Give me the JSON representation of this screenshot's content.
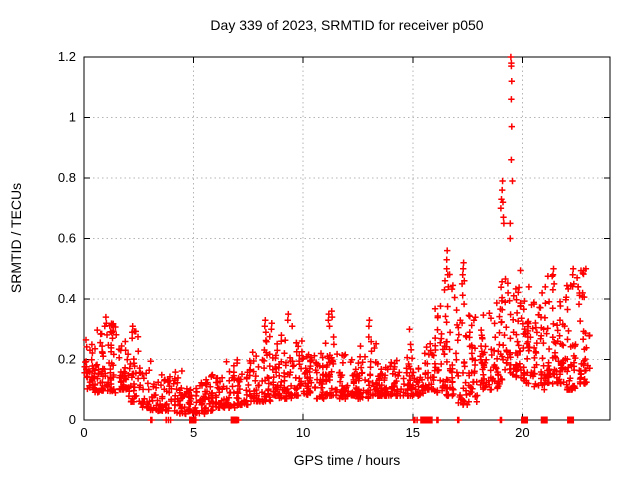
{
  "chart_data": {
    "type": "scatter",
    "title": "Day 339 of 2023, SRMTID for receiver p050",
    "xlabel": "GPS time / hours",
    "ylabel": "SRMTID / TECUs",
    "xlim": [
      0,
      24
    ],
    "ylim": [
      0,
      1.2
    ],
    "xticks": [
      0,
      5,
      10,
      15,
      20
    ],
    "xtick_labels": [
      "0",
      "5",
      "10",
      "15",
      "20"
    ],
    "yticks": [
      0,
      0.2,
      0.4,
      0.6,
      0.8,
      1,
      1.2
    ],
    "ytick_labels": [
      "0",
      "0.2",
      "0.4",
      "0.6",
      "0.8",
      "1",
      "1.2"
    ],
    "grid": true,
    "grid_color": "#b5b5b5",
    "axis_color": "#000000",
    "marker": "plus",
    "marker_color": "#ff0000",
    "background": "#ffffff",
    "seed": 1339,
    "series_bins": [
      [
        0.0,
        0.5,
        0.1,
        0.27,
        40
      ],
      [
        0.5,
        1.0,
        0.09,
        0.3,
        40
      ],
      [
        1.0,
        1.5,
        0.09,
        0.33,
        42
      ],
      [
        1.5,
        2.0,
        0.1,
        0.26,
        34
      ],
      [
        2.0,
        2.5,
        0.06,
        0.3,
        32
      ],
      [
        2.5,
        3.0,
        0.04,
        0.18,
        30
      ],
      [
        3.0,
        3.5,
        0.03,
        0.2,
        30
      ],
      [
        3.5,
        4.0,
        0.03,
        0.15,
        30
      ],
      [
        4.0,
        4.5,
        0.02,
        0.17,
        30
      ],
      [
        4.5,
        5.0,
        0.02,
        0.12,
        28
      ],
      [
        5.0,
        5.5,
        0.02,
        0.13,
        28
      ],
      [
        5.5,
        6.0,
        0.03,
        0.16,
        30
      ],
      [
        6.0,
        6.5,
        0.04,
        0.14,
        30
      ],
      [
        6.5,
        7.0,
        0.04,
        0.2,
        30
      ],
      [
        7.0,
        7.5,
        0.05,
        0.16,
        30
      ],
      [
        7.5,
        8.0,
        0.06,
        0.23,
        32
      ],
      [
        8.0,
        8.5,
        0.06,
        0.28,
        34
      ],
      [
        8.5,
        9.0,
        0.07,
        0.26,
        32
      ],
      [
        9.0,
        9.5,
        0.07,
        0.3,
        34
      ],
      [
        9.5,
        10.0,
        0.08,
        0.28,
        32
      ],
      [
        10.0,
        10.5,
        0.08,
        0.22,
        32
      ],
      [
        10.5,
        11.0,
        0.07,
        0.24,
        32
      ],
      [
        11.0,
        11.5,
        0.08,
        0.32,
        34
      ],
      [
        11.5,
        12.0,
        0.07,
        0.22,
        30
      ],
      [
        12.0,
        12.5,
        0.08,
        0.2,
        32
      ],
      [
        12.5,
        13.0,
        0.07,
        0.28,
        32
      ],
      [
        13.0,
        13.5,
        0.08,
        0.26,
        32
      ],
      [
        13.5,
        14.0,
        0.08,
        0.18,
        32
      ],
      [
        14.0,
        14.5,
        0.08,
        0.2,
        32
      ],
      [
        14.5,
        15.0,
        0.08,
        0.24,
        30
      ],
      [
        15.0,
        15.5,
        0.08,
        0.18,
        30
      ],
      [
        15.5,
        16.0,
        0.1,
        0.26,
        32
      ],
      [
        16.0,
        16.5,
        0.09,
        0.38,
        34
      ],
      [
        16.5,
        17.0,
        0.08,
        0.5,
        36
      ],
      [
        17.0,
        17.5,
        0.05,
        0.44,
        34
      ],
      [
        17.5,
        18.0,
        0.06,
        0.35,
        34
      ],
      [
        18.0,
        18.5,
        0.1,
        0.36,
        34
      ],
      [
        18.5,
        19.0,
        0.1,
        0.4,
        34
      ],
      [
        19.0,
        19.5,
        0.12,
        0.48,
        36
      ],
      [
        19.5,
        20.0,
        0.14,
        0.5,
        36
      ],
      [
        20.0,
        20.5,
        0.12,
        0.44,
        38
      ],
      [
        20.5,
        21.0,
        0.1,
        0.42,
        38
      ],
      [
        21.0,
        21.5,
        0.12,
        0.48,
        38
      ],
      [
        21.5,
        22.0,
        0.12,
        0.42,
        38
      ],
      [
        22.0,
        22.5,
        0.1,
        0.48,
        40
      ],
      [
        22.5,
        23.1,
        0.12,
        0.5,
        40
      ]
    ],
    "outlier_points": [
      [
        0.95,
        0.31
      ],
      [
        1.0,
        0.34
      ],
      [
        1.02,
        0.32
      ],
      [
        2.2,
        0.29
      ],
      [
        2.22,
        0.31
      ],
      [
        8.25,
        0.31
      ],
      [
        8.27,
        0.33
      ],
      [
        8.3,
        0.29
      ],
      [
        8.55,
        0.3
      ],
      [
        8.57,
        0.32
      ],
      [
        9.3,
        0.33
      ],
      [
        9.32,
        0.35
      ],
      [
        9.5,
        0.31
      ],
      [
        11.15,
        0.33
      ],
      [
        11.17,
        0.35
      ],
      [
        11.2,
        0.31
      ],
      [
        11.3,
        0.36
      ],
      [
        11.32,
        0.34
      ],
      [
        13.0,
        0.31
      ],
      [
        13.02,
        0.33
      ],
      [
        14.85,
        0.3
      ],
      [
        14.9,
        0.25
      ],
      [
        16.45,
        0.43
      ],
      [
        16.47,
        0.46
      ],
      [
        16.55,
        0.5
      ],
      [
        16.55,
        0.53
      ],
      [
        16.57,
        0.56
      ],
      [
        16.6,
        0.48
      ],
      [
        16.62,
        0.44
      ],
      [
        17.25,
        0.45
      ],
      [
        17.28,
        0.48
      ],
      [
        17.3,
        0.5
      ],
      [
        17.32,
        0.52
      ],
      [
        17.35,
        0.46
      ],
      [
        19.02,
        0.7
      ],
      [
        19.05,
        0.73
      ],
      [
        19.08,
        0.76
      ],
      [
        19.1,
        0.79
      ],
      [
        19.12,
        0.72
      ],
      [
        19.14,
        0.67
      ],
      [
        19.16,
        0.65
      ],
      [
        19.45,
        0.6
      ],
      [
        19.48,
        1.2
      ],
      [
        19.5,
        1.18
      ],
      [
        19.5,
        1.17
      ],
      [
        19.52,
        1.12
      ],
      [
        19.5,
        1.06
      ],
      [
        19.52,
        0.97
      ],
      [
        19.5,
        0.86
      ],
      [
        19.45,
        0.65
      ],
      [
        19.55,
        0.79
      ],
      [
        20.3,
        0.44
      ],
      [
        20.9,
        0.42
      ],
      [
        21.05,
        0.44
      ],
      [
        21.4,
        0.48
      ],
      [
        21.42,
        0.5
      ],
      [
        21.45,
        0.45
      ],
      [
        22.3,
        0.48
      ],
      [
        22.32,
        0.5
      ],
      [
        22.35,
        0.45
      ],
      [
        22.5,
        0.47
      ],
      [
        22.55,
        0.44
      ],
      [
        22.75,
        0.42
      ],
      [
        22.9,
        0.5
      ]
    ],
    "zero_square_markers_x": [
      4.95,
      6.85,
      15.5,
      15.75,
      20.1,
      21.0,
      22.2
    ],
    "zero_plus_markers_x": [
      3.05,
      3.1,
      3.75,
      3.85,
      3.95,
      5.1,
      7.0,
      7.05,
      15.05,
      15.1,
      15.2,
      16.1,
      16.15,
      17.05,
      17.1,
      19.0,
      19.05
    ]
  }
}
